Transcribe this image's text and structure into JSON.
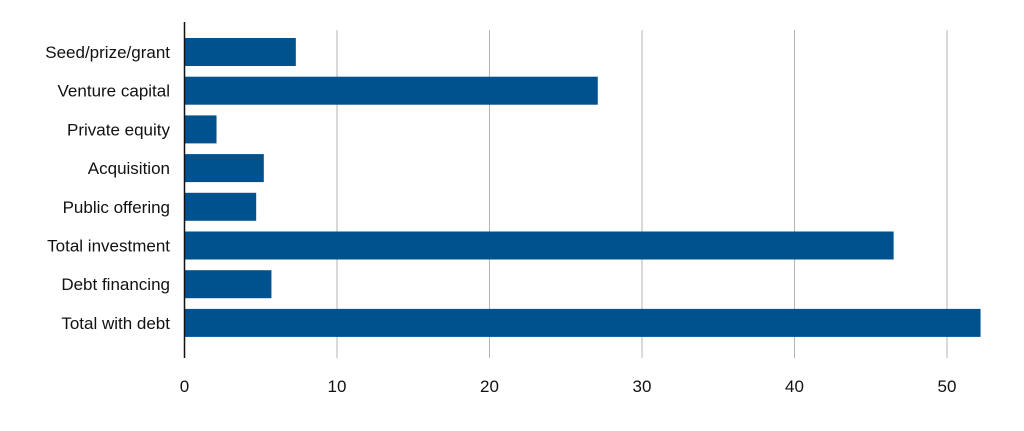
{
  "chart_data": {
    "type": "bar",
    "orientation": "horizontal",
    "categories": [
      "Seed/prize/grant",
      "Venture capital",
      "Private equity",
      "Acquisition",
      "Public offering",
      "Total investment",
      "Debt financing",
      "Total with debt"
    ],
    "values": [
      7.3,
      27.1,
      2.1,
      5.2,
      4.7,
      46.5,
      5.7,
      52.2
    ],
    "title": "",
    "xlabel": "",
    "ylabel": "",
    "xlim": [
      0,
      54
    ],
    "xticks": [
      "0",
      "10",
      "20",
      "30",
      "40",
      "50"
    ],
    "grid": "vertical",
    "bar_color": "#00528f",
    "grid_color": "#b3b3b3"
  }
}
